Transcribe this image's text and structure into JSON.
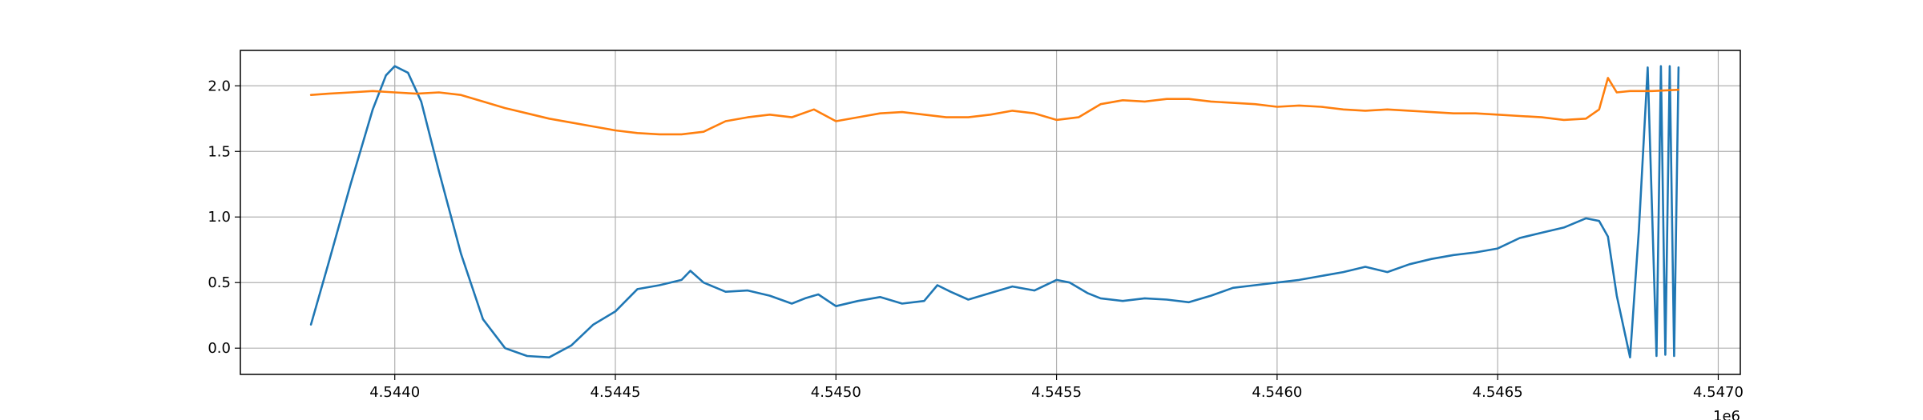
{
  "chart_data": {
    "type": "line",
    "title": "",
    "xlabel": "",
    "ylabel": "",
    "x_offset_label": "1e6",
    "xlim": [
      4.54365,
      4.54705
    ],
    "ylim": [
      -0.2,
      2.27
    ],
    "grid": true,
    "legend": "none",
    "x_ticks": [
      {
        "value": 4.544,
        "label": "4.5440"
      },
      {
        "value": 4.5445,
        "label": "4.5445"
      },
      {
        "value": 4.545,
        "label": "4.5450"
      },
      {
        "value": 4.5455,
        "label": "4.5455"
      },
      {
        "value": 4.546,
        "label": "4.5460"
      },
      {
        "value": 4.5465,
        "label": "4.5465"
      },
      {
        "value": 4.547,
        "label": "4.5470"
      }
    ],
    "y_ticks": [
      {
        "value": 0.0,
        "label": "0.0"
      },
      {
        "value": 0.5,
        "label": "0.5"
      },
      {
        "value": 1.0,
        "label": "1.0"
      },
      {
        "value": 1.5,
        "label": "1.5"
      },
      {
        "value": 2.0,
        "label": "2.0"
      }
    ],
    "series": [
      {
        "color": "#1f77b4",
        "x": [
          4.54381,
          4.54385,
          4.5439,
          4.54395,
          4.54398,
          4.544,
          4.54403,
          4.54406,
          4.5441,
          4.54415,
          4.5442,
          4.54425,
          4.5443,
          4.54435,
          4.5444,
          4.54445,
          4.5445,
          4.54455,
          4.5446,
          4.54465,
          4.54467,
          4.5447,
          4.54475,
          4.5448,
          4.54485,
          4.5449,
          4.54493,
          4.54496,
          4.545,
          4.54505,
          4.5451,
          4.54515,
          4.5452,
          4.54523,
          4.54526,
          4.5453,
          4.54535,
          4.5454,
          4.54545,
          4.5455,
          4.54553,
          4.54557,
          4.5456,
          4.54565,
          4.5457,
          4.54575,
          4.5458,
          4.54585,
          4.5459,
          4.54595,
          4.546,
          4.54605,
          4.5461,
          4.54615,
          4.5462,
          4.54625,
          4.5463,
          4.54635,
          4.5464,
          4.54645,
          4.5465,
          4.54655,
          4.5466,
          4.54665,
          4.5467,
          4.54673,
          4.54675,
          4.54677,
          4.5468,
          4.54682,
          4.54684,
          4.54686,
          4.54687,
          4.54688,
          4.54689,
          4.5469,
          4.54691
        ],
        "y": [
          0.18,
          0.65,
          1.25,
          1.82,
          2.08,
          2.15,
          2.1,
          1.88,
          1.35,
          0.72,
          0.22,
          0.0,
          -0.06,
          -0.07,
          0.02,
          0.18,
          0.28,
          0.45,
          0.48,
          0.52,
          0.59,
          0.5,
          0.43,
          0.44,
          0.4,
          0.34,
          0.38,
          0.41,
          0.32,
          0.36,
          0.39,
          0.34,
          0.36,
          0.48,
          0.43,
          0.37,
          0.42,
          0.47,
          0.44,
          0.52,
          0.5,
          0.42,
          0.38,
          0.36,
          0.38,
          0.37,
          0.35,
          0.4,
          0.46,
          0.48,
          0.5,
          0.52,
          0.55,
          0.58,
          0.62,
          0.58,
          0.64,
          0.68,
          0.71,
          0.73,
          0.76,
          0.84,
          0.88,
          0.92,
          0.99,
          0.97,
          0.85,
          0.4,
          -0.07,
          0.9,
          2.14,
          -0.06,
          2.15,
          -0.05,
          2.15,
          -0.06,
          2.14
        ]
      },
      {
        "color": "#ff7f0e",
        "x": [
          4.54381,
          4.54385,
          4.5439,
          4.54395,
          4.544,
          4.54405,
          4.5441,
          4.54415,
          4.5442,
          4.54425,
          4.5443,
          4.54435,
          4.5444,
          4.54445,
          4.5445,
          4.54455,
          4.5446,
          4.54465,
          4.5447,
          4.54475,
          4.5448,
          4.54485,
          4.5449,
          4.54495,
          4.545,
          4.54505,
          4.5451,
          4.54515,
          4.5452,
          4.54525,
          4.5453,
          4.54535,
          4.5454,
          4.54545,
          4.5455,
          4.54555,
          4.5456,
          4.54565,
          4.5457,
          4.54575,
          4.5458,
          4.54585,
          4.5459,
          4.54595,
          4.546,
          4.54605,
          4.5461,
          4.54615,
          4.5462,
          4.54625,
          4.5463,
          4.54635,
          4.5464,
          4.54645,
          4.5465,
          4.54655,
          4.5466,
          4.54665,
          4.5467,
          4.54673,
          4.54675,
          4.54677,
          4.5468,
          4.54685,
          4.54691
        ],
        "y": [
          1.93,
          1.94,
          1.95,
          1.96,
          1.95,
          1.94,
          1.95,
          1.93,
          1.88,
          1.83,
          1.79,
          1.75,
          1.72,
          1.69,
          1.66,
          1.64,
          1.63,
          1.63,
          1.65,
          1.73,
          1.76,
          1.78,
          1.76,
          1.82,
          1.73,
          1.76,
          1.79,
          1.8,
          1.78,
          1.76,
          1.76,
          1.78,
          1.81,
          1.79,
          1.74,
          1.76,
          1.86,
          1.89,
          1.88,
          1.9,
          1.9,
          1.88,
          1.87,
          1.86,
          1.84,
          1.85,
          1.84,
          1.82,
          1.81,
          1.82,
          1.81,
          1.8,
          1.79,
          1.79,
          1.78,
          1.77,
          1.76,
          1.74,
          1.75,
          1.82,
          2.06,
          1.95,
          1.96,
          1.96,
          1.97
        ]
      }
    ]
  }
}
